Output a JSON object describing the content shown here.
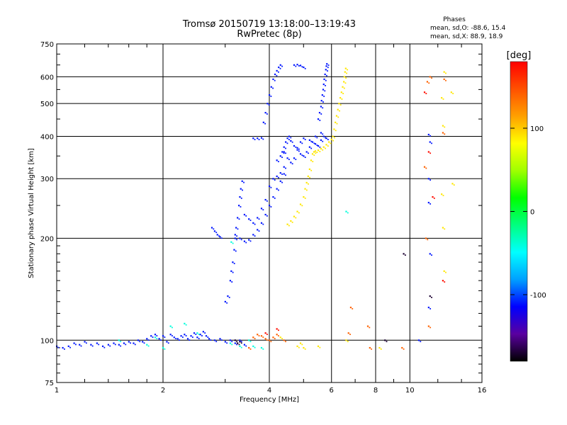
{
  "chart_data": {
    "type": "scatter",
    "title": "Tromsø 20150719 13:18:00–13:19:43",
    "subtitle": "RwPretec (8p)",
    "xlabel": "Frequency [MHz]",
    "ylabel": "Stationary phase Virtual Height [km]",
    "x_scale": "log",
    "y_scale": "log",
    "xlim": [
      1,
      16
    ],
    "ylim": [
      75,
      750
    ],
    "x_ticks": [
      1,
      2,
      4,
      6,
      8,
      10,
      16
    ],
    "y_ticks": [
      75,
      100,
      200,
      300,
      400,
      500,
      600,
      750
    ],
    "grid": true,
    "phase_stats": {
      "heading": "Phases",
      "o_line": "mean, sd,O: -88.6, 15.4",
      "x_line": "mean, sd,X:  88.9, 18.9"
    },
    "colorbar": {
      "label": "[deg]",
      "ticks": [
        "100",
        "0",
        "-100"
      ],
      "tick_values": [
        100,
        0,
        -100
      ],
      "range": [
        -180,
        180
      ],
      "colors": [
        "#000000",
        "#5a00a0",
        "#0000ff",
        "#00a0ff",
        "#00ffff",
        "#00ff80",
        "#00ff00",
        "#a0ff00",
        "#ffff00",
        "#ffa000",
        "#ff5000",
        "#ff0000"
      ]
    },
    "series": [
      {
        "phase": -110,
        "points": [
          [
            1.0,
            96
          ],
          [
            1.04,
            95
          ],
          [
            1.08,
            96
          ],
          [
            1.12,
            98
          ],
          [
            1.16,
            97
          ],
          [
            1.2,
            99
          ],
          [
            1.25,
            97
          ],
          [
            1.3,
            98
          ],
          [
            1.35,
            96
          ],
          [
            1.4,
            97
          ],
          [
            1.45,
            98
          ],
          [
            1.5,
            97
          ],
          [
            1.55,
            98
          ],
          [
            1.6,
            99
          ],
          [
            1.65,
            98
          ],
          [
            1.7,
            100
          ],
          [
            1.75,
            99
          ],
          [
            1.8,
            101
          ],
          [
            1.85,
            103
          ],
          [
            1.9,
            104
          ],
          [
            1.95,
            101
          ],
          [
            2.0,
            103
          ],
          [
            2.05,
            99
          ],
          [
            2.1,
            104
          ],
          [
            2.15,
            102
          ],
          [
            2.2,
            101
          ],
          [
            2.25,
            103
          ],
          [
            2.3,
            104
          ],
          [
            2.35,
            101
          ],
          [
            2.4,
            103
          ],
          [
            2.45,
            105
          ],
          [
            2.5,
            102
          ],
          [
            2.55,
            104
          ],
          [
            2.6,
            106
          ],
          [
            2.65,
            103
          ],
          [
            2.7,
            101
          ],
          [
            2.8,
            100
          ],
          [
            2.9,
            101
          ],
          [
            3.0,
            99
          ],
          [
            3.1,
            100
          ],
          [
            3.2,
            98
          ],
          [
            3.3,
            100
          ],
          [
            3.4,
            97
          ],
          [
            3.0,
            130
          ],
          [
            3.05,
            135
          ],
          [
            3.1,
            150
          ],
          [
            3.12,
            160
          ],
          [
            3.15,
            170
          ],
          [
            3.18,
            185
          ],
          [
            3.2,
            200
          ],
          [
            3.22,
            215
          ],
          [
            3.25,
            230
          ],
          [
            3.28,
            250
          ],
          [
            3.3,
            265
          ],
          [
            3.32,
            280
          ],
          [
            3.35,
            295
          ],
          [
            3.2,
            205
          ],
          [
            3.3,
            200
          ],
          [
            3.4,
            196
          ],
          [
            3.5,
            198
          ],
          [
            3.6,
            205
          ],
          [
            3.7,
            212
          ],
          [
            3.8,
            222
          ],
          [
            3.9,
            235
          ],
          [
            4.0,
            250
          ],
          [
            4.1,
            265
          ],
          [
            4.2,
            280
          ],
          [
            4.3,
            295
          ],
          [
            4.4,
            310
          ],
          [
            3.4,
            235
          ],
          [
            3.5,
            228
          ],
          [
            3.6,
            222
          ],
          [
            3.7,
            230
          ],
          [
            3.8,
            245
          ],
          [
            3.9,
            260
          ],
          [
            4.0,
            285
          ],
          [
            4.1,
            300
          ],
          [
            4.2,
            305
          ],
          [
            4.3,
            312
          ],
          [
            4.4,
            325
          ],
          [
            4.2,
            340
          ],
          [
            4.3,
            350
          ],
          [
            4.35,
            360
          ],
          [
            4.4,
            372
          ],
          [
            4.45,
            385
          ],
          [
            4.5,
            395
          ],
          [
            4.55,
            400
          ],
          [
            4.6,
            388
          ],
          [
            4.7,
            375
          ],
          [
            4.8,
            365
          ],
          [
            4.9,
            355
          ],
          [
            5.0,
            350
          ],
          [
            5.1,
            360
          ],
          [
            5.2,
            372
          ],
          [
            5.3,
            385
          ],
          [
            5.4,
            380
          ],
          [
            5.5,
            375
          ],
          [
            5.6,
            390
          ],
          [
            5.7,
            400
          ],
          [
            5.8,
            395
          ],
          [
            4.4,
            360
          ],
          [
            4.5,
            345
          ],
          [
            4.6,
            335
          ],
          [
            4.7,
            345
          ],
          [
            4.8,
            370
          ],
          [
            4.9,
            385
          ],
          [
            5.0,
            395
          ],
          [
            5.2,
            390
          ],
          [
            5.4,
            400
          ],
          [
            5.6,
            410
          ],
          [
            3.6,
            395
          ],
          [
            3.7,
            395
          ],
          [
            3.8,
            396
          ],
          [
            3.85,
            440
          ],
          [
            3.9,
            470
          ],
          [
            3.95,
            500
          ],
          [
            4.0,
            530
          ],
          [
            4.05,
            560
          ],
          [
            4.1,
            590
          ],
          [
            4.15,
            610
          ],
          [
            4.2,
            625
          ],
          [
            4.25,
            640
          ],
          [
            4.3,
            650
          ],
          [
            4.7,
            650
          ],
          [
            4.8,
            652
          ],
          [
            4.9,
            648
          ],
          [
            5.0,
            640
          ],
          [
            5.5,
            450
          ],
          [
            5.55,
            470
          ],
          [
            5.6,
            490
          ],
          [
            5.62,
            510
          ],
          [
            5.65,
            530
          ],
          [
            5.68,
            550
          ],
          [
            5.7,
            570
          ],
          [
            5.72,
            590
          ],
          [
            5.75,
            610
          ],
          [
            5.78,
            630
          ],
          [
            5.8,
            645
          ],
          [
            5.82,
            655
          ],
          [
            2.75,
            215
          ],
          [
            2.8,
            210
          ],
          [
            2.85,
            205
          ],
          [
            2.9,
            202
          ],
          [
            10.6,
            100
          ],
          [
            11.3,
            125
          ],
          [
            11.3,
            300
          ],
          [
            11.3,
            405
          ],
          [
            11.4,
            385
          ],
          [
            11.3,
            255
          ],
          [
            11.4,
            180
          ]
        ]
      },
      {
        "phase": -40,
        "points": [
          [
            1.5,
            100
          ],
          [
            1.9,
            102
          ],
          [
            2.1,
            110
          ],
          [
            2.3,
            112
          ],
          [
            2.5,
            105
          ],
          [
            3.5,
            100
          ],
          [
            3.6,
            96
          ],
          [
            3.8,
            95
          ],
          [
            3.3,
            96
          ],
          [
            3.1,
            98
          ],
          [
            2.0,
            95
          ],
          [
            1.8,
            97
          ],
          [
            6.6,
            240
          ],
          [
            3.12,
            195
          ]
        ]
      },
      {
        "phase": 90,
        "points": [
          [
            4.5,
            220
          ],
          [
            4.6,
            225
          ],
          [
            4.7,
            232
          ],
          [
            4.8,
            240
          ],
          [
            4.9,
            252
          ],
          [
            5.0,
            265
          ],
          [
            5.05,
            280
          ],
          [
            5.1,
            292
          ],
          [
            5.15,
            305
          ],
          [
            5.2,
            320
          ],
          [
            5.25,
            340
          ],
          [
            5.3,
            355
          ],
          [
            5.35,
            360
          ],
          [
            5.4,
            362
          ],
          [
            5.5,
            364
          ],
          [
            5.6,
            368
          ],
          [
            5.7,
            372
          ],
          [
            5.8,
            378
          ],
          [
            5.9,
            385
          ],
          [
            6.0,
            392
          ],
          [
            6.05,
            400
          ],
          [
            6.1,
            420
          ],
          [
            6.15,
            440
          ],
          [
            6.2,
            460
          ],
          [
            6.25,
            480
          ],
          [
            6.3,
            500
          ],
          [
            6.35,
            520
          ],
          [
            6.4,
            540
          ],
          [
            6.45,
            560
          ],
          [
            6.5,
            580
          ],
          [
            6.52,
            600
          ],
          [
            6.55,
            620
          ],
          [
            6.58,
            635
          ],
          [
            4.8,
            96
          ],
          [
            4.9,
            98
          ],
          [
            5.5,
            96
          ],
          [
            5.0,
            95
          ],
          [
            4.3,
            102
          ],
          [
            6.6,
            100
          ],
          [
            8.2,
            95
          ],
          [
            12.3,
            520
          ],
          [
            12.4,
            430
          ],
          [
            12.5,
            620
          ],
          [
            12.3,
            270
          ],
          [
            12.4,
            215
          ],
          [
            12.5,
            160
          ],
          [
            13.1,
            540
          ],
          [
            13.2,
            290
          ]
        ]
      },
      {
        "phase": 140,
        "points": [
          [
            3.6,
            102
          ],
          [
            3.7,
            104
          ],
          [
            3.8,
            103
          ],
          [
            3.9,
            101
          ],
          [
            4.0,
            100
          ],
          [
            4.1,
            102
          ],
          [
            4.2,
            104
          ],
          [
            4.4,
            100
          ],
          [
            3.5,
            95
          ],
          [
            6.7,
            105
          ],
          [
            6.8,
            125
          ],
          [
            7.6,
            110
          ],
          [
            9.5,
            95
          ],
          [
            11.0,
            325
          ],
          [
            11.2,
            580
          ],
          [
            11.4,
            600
          ],
          [
            11.1,
            200
          ],
          [
            11.3,
            110
          ],
          [
            12.4,
            410
          ],
          [
            12.5,
            590
          ],
          [
            7.7,
            95
          ]
        ]
      },
      {
        "phase": 175,
        "points": [
          [
            11.6,
            265
          ],
          [
            11.0,
            540
          ],
          [
            11.3,
            360
          ],
          [
            12.4,
            150
          ],
          [
            4.2,
            108
          ],
          [
            3.9,
            105
          ]
        ]
      },
      {
        "phase": -170,
        "points": [
          [
            3.2,
            100
          ],
          [
            3.25,
            98
          ],
          [
            3.3,
            99
          ],
          [
            8.5,
            100
          ],
          [
            9.6,
            180
          ],
          [
            11.4,
            135
          ]
        ]
      }
    ]
  }
}
